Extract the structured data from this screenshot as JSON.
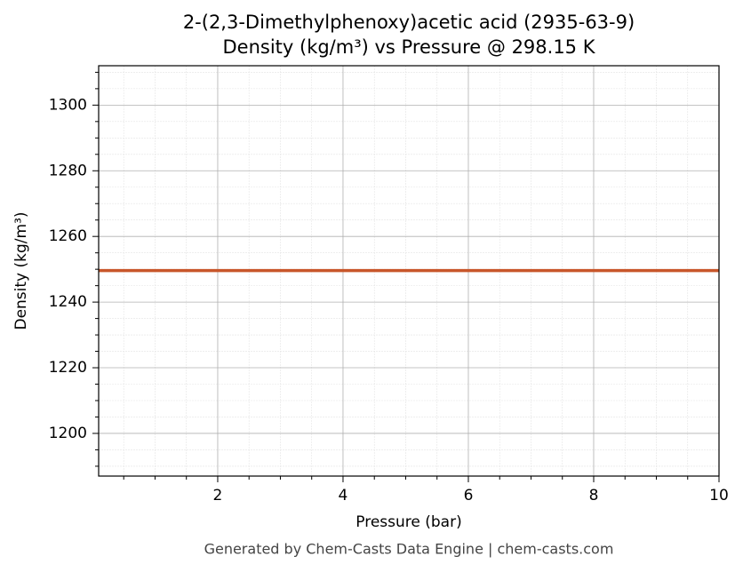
{
  "chart_data": {
    "type": "line",
    "title": "2-(2,3-Dimethylphenoxy)acetic acid (2935-63-9)",
    "subtitle": "Density (kg/m³) vs Pressure @ 298.15 K",
    "x_label": "Pressure (bar)",
    "y_label": "Density (kg/m³)",
    "footer": "Generated by Chem-Casts Data Engine | chem-casts.com",
    "x": [
      0.1,
      2,
      4,
      6,
      8,
      10
    ],
    "series": [
      {
        "name": "Density",
        "color": "#c8562a",
        "values": [
          1249.6,
          1249.6,
          1249.6,
          1249.6,
          1249.6,
          1249.6
        ]
      }
    ],
    "xlim": [
      0.1,
      10
    ],
    "xticks": [
      2,
      4,
      6,
      8,
      10
    ],
    "xminorticks": [
      0.5,
      1,
      1.5,
      2.5,
      3,
      3.5,
      4.5,
      5,
      5.5,
      6.5,
      7,
      7.5,
      8.5,
      9,
      9.5
    ],
    "ylim": [
      1187,
      1312
    ],
    "yticks": [
      1200,
      1220,
      1240,
      1260,
      1280,
      1300
    ],
    "yminorticks": [
      1190,
      1195,
      1205,
      1210,
      1215,
      1225,
      1230,
      1235,
      1245,
      1250,
      1255,
      1265,
      1270,
      1275,
      1285,
      1290,
      1295,
      1305,
      1310
    ],
    "grid": true
  }
}
